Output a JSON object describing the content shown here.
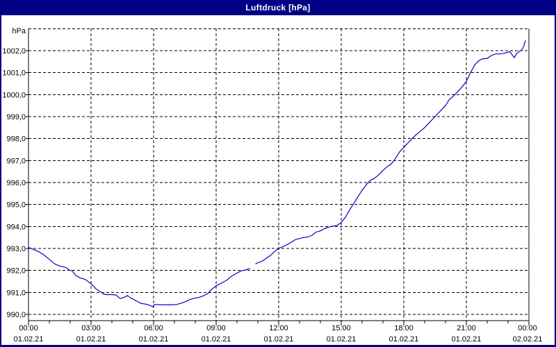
{
  "window": {
    "title": "Luftdruck [hPa]",
    "titlebar_color": "#000084",
    "title_text_color": "#ffffff"
  },
  "chart_data": {
    "type": "line",
    "title": "Luftdruck [hPa]",
    "grid": "dashed",
    "legend": "none",
    "line_color": "#0000cc",
    "axis_color": "#000000",
    "background_color": "#ffffff",
    "y_axis": {
      "unit_label": "hPa",
      "ylim": [
        989.7,
        1003.0
      ],
      "ticks": [
        {
          "value": 990,
          "label": "990,0"
        },
        {
          "value": 991,
          "label": "991,0"
        },
        {
          "value": 992,
          "label": "992,0"
        },
        {
          "value": 993,
          "label": "993,0"
        },
        {
          "value": 994,
          "label": "994,0"
        },
        {
          "value": 995,
          "label": "995,0"
        },
        {
          "value": 996,
          "label": "996,0"
        },
        {
          "value": 997,
          "label": "997,0"
        },
        {
          "value": 998,
          "label": "998,0"
        },
        {
          "value": 999,
          "label": "999,0"
        },
        {
          "value": 1000,
          "label": "1000,0"
        },
        {
          "value": 1001,
          "label": "1001,0"
        },
        {
          "value": 1002,
          "label": "1002,0"
        }
      ],
      "top_frame_gridline_value": 1003
    },
    "x_axis": {
      "xlim_hours": [
        0,
        24
      ],
      "minor_tick_interval_hours": 1,
      "major_tick_interval_hours": 3,
      "major_ticks": [
        {
          "hour": 0,
          "time": "00:00",
          "date": "01.02.21"
        },
        {
          "hour": 3,
          "time": "03:00",
          "date": "01.02.21"
        },
        {
          "hour": 6,
          "time": "06:00",
          "date": "01.02.21"
        },
        {
          "hour": 9,
          "time": "09:00",
          "date": "01.02.21"
        },
        {
          "hour": 12,
          "time": "12:00",
          "date": "01.02.21"
        },
        {
          "hour": 15,
          "time": "15:00",
          "date": "01.02.21"
        },
        {
          "hour": 18,
          "time": "18:00",
          "date": "01.02.21"
        },
        {
          "hour": 21,
          "time": "21:00",
          "date": "01.02.21"
        },
        {
          "hour": 24,
          "time": "00:00",
          "date": "02.02.21"
        }
      ]
    },
    "series": [
      {
        "name": "Luftdruck",
        "unit": "hPa",
        "color": "#0000cc",
        "points": [
          [
            0.0,
            993.05
          ],
          [
            0.25,
            992.95
          ],
          [
            0.5,
            992.85
          ],
          [
            0.75,
            992.7
          ],
          [
            1.0,
            992.5
          ],
          [
            1.25,
            992.3
          ],
          [
            1.5,
            992.2
          ],
          [
            1.75,
            992.15
          ],
          [
            2.0,
            992.0
          ],
          [
            2.1,
            991.98
          ],
          [
            2.25,
            991.78
          ],
          [
            2.5,
            991.65
          ],
          [
            2.7,
            991.6
          ],
          [
            3.0,
            991.4
          ],
          [
            3.25,
            991.15
          ],
          [
            3.5,
            991.0
          ],
          [
            3.6,
            990.92
          ],
          [
            3.75,
            990.9
          ],
          [
            4.0,
            990.9
          ],
          [
            4.2,
            990.88
          ],
          [
            4.4,
            990.72
          ],
          [
            4.6,
            990.78
          ],
          [
            4.75,
            990.86
          ],
          [
            4.9,
            990.75
          ],
          [
            5.0,
            990.7
          ],
          [
            5.2,
            990.6
          ],
          [
            5.4,
            990.5
          ],
          [
            5.6,
            990.47
          ],
          [
            5.8,
            990.42
          ],
          [
            5.95,
            990.35
          ],
          [
            6.05,
            990.45
          ],
          [
            6.3,
            990.44
          ],
          [
            6.6,
            990.44
          ],
          [
            6.9,
            990.44
          ],
          [
            7.1,
            990.45
          ],
          [
            7.3,
            990.5
          ],
          [
            7.5,
            990.57
          ],
          [
            7.75,
            990.68
          ],
          [
            8.0,
            990.74
          ],
          [
            8.2,
            990.78
          ],
          [
            8.4,
            990.85
          ],
          [
            8.6,
            990.95
          ],
          [
            8.8,
            991.15
          ],
          [
            9.0,
            991.3
          ],
          [
            9.25,
            991.42
          ],
          [
            9.5,
            991.55
          ],
          [
            9.75,
            991.75
          ],
          [
            10.0,
            991.88
          ],
          [
            10.2,
            991.98
          ],
          [
            10.4,
            992.02
          ],
          [
            10.6,
            992.08
          ],
          null,
          [
            10.9,
            992.3
          ],
          [
            11.0,
            992.35
          ],
          [
            11.2,
            992.42
          ],
          [
            11.4,
            992.55
          ],
          [
            11.6,
            992.68
          ],
          [
            11.8,
            992.85
          ],
          [
            12.0,
            993.0
          ],
          [
            12.2,
            993.08
          ],
          [
            12.4,
            993.17
          ],
          [
            12.6,
            993.28
          ],
          [
            12.8,
            993.4
          ],
          [
            13.0,
            993.45
          ],
          [
            13.2,
            993.5
          ],
          [
            13.4,
            993.52
          ],
          [
            13.6,
            993.6
          ],
          [
            13.8,
            993.75
          ],
          [
            14.0,
            993.8
          ],
          [
            14.2,
            993.9
          ],
          [
            14.4,
            993.97
          ],
          [
            14.6,
            994.02
          ],
          [
            14.8,
            994.05
          ],
          [
            15.0,
            994.18
          ],
          [
            15.2,
            994.42
          ],
          [
            15.4,
            994.75
          ],
          [
            15.6,
            995.05
          ],
          [
            15.8,
            995.35
          ],
          [
            16.0,
            995.65
          ],
          [
            16.2,
            995.9
          ],
          [
            16.4,
            996.1
          ],
          [
            16.6,
            996.2
          ],
          [
            16.8,
            996.35
          ],
          [
            17.0,
            996.55
          ],
          [
            17.2,
            996.72
          ],
          [
            17.4,
            996.85
          ],
          [
            17.6,
            997.1
          ],
          [
            17.8,
            997.4
          ],
          [
            18.0,
            997.6
          ],
          [
            18.25,
            997.85
          ],
          [
            18.5,
            998.1
          ],
          [
            18.75,
            998.3
          ],
          [
            19.0,
            998.5
          ],
          [
            19.25,
            998.75
          ],
          [
            19.5,
            999.0
          ],
          [
            19.75,
            999.25
          ],
          [
            20.0,
            999.5
          ],
          [
            20.2,
            999.8
          ],
          [
            20.35,
            999.9
          ],
          [
            20.5,
            1000.05
          ],
          [
            20.75,
            1000.3
          ],
          [
            21.0,
            1000.6
          ],
          [
            21.2,
            1001.0
          ],
          [
            21.4,
            1001.35
          ],
          [
            21.6,
            1001.55
          ],
          [
            21.75,
            1001.62
          ],
          [
            22.0,
            1001.65
          ],
          [
            22.2,
            1001.78
          ],
          [
            22.4,
            1001.85
          ],
          [
            22.6,
            1001.85
          ],
          [
            22.8,
            1001.88
          ],
          [
            23.0,
            1001.93
          ],
          [
            23.1,
            1001.95
          ],
          [
            23.2,
            1001.8
          ],
          [
            23.3,
            1001.68
          ],
          [
            23.42,
            1001.88
          ],
          [
            23.55,
            1001.97
          ],
          [
            23.65,
            1002.02
          ],
          [
            23.75,
            1002.2
          ],
          [
            23.83,
            1002.45
          ]
        ]
      }
    ]
  }
}
